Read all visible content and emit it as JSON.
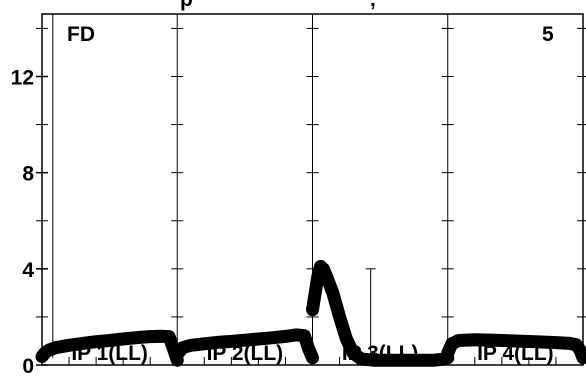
{
  "chart_data": {
    "type": "scatter",
    "title": "",
    "top_text": "p",
    "top_text_right": ",",
    "corner_left": "FD",
    "corner_right": "5",
    "xlabel": "",
    "ylabel": "",
    "ylim": [
      0,
      14.6
    ],
    "y_ticks": [
      0,
      4,
      8,
      12
    ],
    "panels": [
      {
        "label": "IP 1(LL)",
        "points": [
          [
            0.0,
            0.35
          ],
          [
            0.02,
            0.5
          ],
          [
            0.05,
            0.62
          ],
          [
            0.1,
            0.72
          ],
          [
            0.2,
            0.82
          ],
          [
            0.3,
            0.9
          ],
          [
            0.4,
            0.97
          ],
          [
            0.5,
            1.02
          ],
          [
            0.6,
            1.08
          ],
          [
            0.7,
            1.14
          ],
          [
            0.8,
            1.18
          ],
          [
            0.88,
            1.2
          ],
          [
            0.94,
            1.18
          ],
          [
            0.97,
            0.7
          ],
          [
            1.0,
            0.2
          ]
        ]
      },
      {
        "label": "IP 2(LL)",
        "points": [
          [
            0.0,
            0.45
          ],
          [
            0.04,
            0.72
          ],
          [
            0.1,
            0.82
          ],
          [
            0.2,
            0.88
          ],
          [
            0.3,
            0.94
          ],
          [
            0.4,
            0.98
          ],
          [
            0.5,
            1.03
          ],
          [
            0.6,
            1.08
          ],
          [
            0.7,
            1.13
          ],
          [
            0.8,
            1.19
          ],
          [
            0.88,
            1.25
          ],
          [
            0.94,
            1.22
          ],
          [
            0.97,
            0.7
          ],
          [
            1.0,
            0.3
          ]
        ]
      },
      {
        "label": "IP 3(LL)",
        "points": [
          [
            0.0,
            2.3
          ],
          [
            0.02,
            3.0
          ],
          [
            0.04,
            3.7
          ],
          [
            0.06,
            4.1
          ],
          [
            0.08,
            4.0
          ],
          [
            0.11,
            3.6
          ],
          [
            0.15,
            3.0
          ],
          [
            0.2,
            2.0
          ],
          [
            0.25,
            1.1
          ],
          [
            0.3,
            0.5
          ],
          [
            0.36,
            0.25
          ],
          [
            0.45,
            0.2
          ],
          [
            0.6,
            0.2
          ],
          [
            0.75,
            0.2
          ],
          [
            0.9,
            0.2
          ],
          [
            0.98,
            0.25
          ],
          [
            1.0,
            0.3
          ]
        ]
      },
      {
        "label": "IP 4(LL)",
        "points": [
          [
            0.0,
            0.5
          ],
          [
            0.03,
            0.88
          ],
          [
            0.08,
            1.02
          ],
          [
            0.2,
            1.05
          ],
          [
            0.35,
            1.03
          ],
          [
            0.5,
            1.0
          ],
          [
            0.65,
            0.97
          ],
          [
            0.8,
            0.93
          ],
          [
            0.9,
            0.9
          ],
          [
            0.95,
            0.85
          ],
          [
            0.98,
            0.6
          ],
          [
            1.0,
            0.3
          ]
        ]
      }
    ],
    "error_bars": [
      {
        "panel": 0,
        "x": 0.08,
        "y_low": 0.3,
        "y_high": 14.6
      },
      {
        "panel": 2,
        "x": 0.43,
        "y_low": 0.2,
        "y_high": 4.0
      }
    ],
    "grid": true
  }
}
